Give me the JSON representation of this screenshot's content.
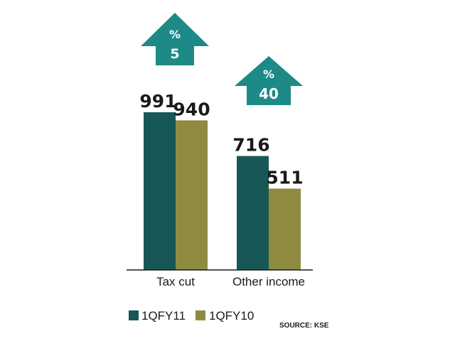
{
  "chart_data": {
    "type": "bar",
    "categories": [
      "Tax cut",
      "Other income"
    ],
    "series": [
      {
        "name": "1QFY11",
        "values": [
          991,
          716
        ],
        "color": "#175856"
      },
      {
        "name": "1QFY10",
        "values": [
          940,
          511
        ],
        "color": "#8e8b40"
      }
    ],
    "annotations": [
      {
        "category": "Tax cut",
        "symbol": "%",
        "value": "5",
        "shape": "up-arrow",
        "color": "#1d8a87"
      },
      {
        "category": "Other income",
        "symbol": "%",
        "value": "40",
        "shape": "up-arrow",
        "color": "#1d8a87"
      }
    ],
    "ylim": [
      0,
      1000
    ],
    "grid": false,
    "legend_position": "bottom-left",
    "source": "SOURCE: KSE"
  }
}
